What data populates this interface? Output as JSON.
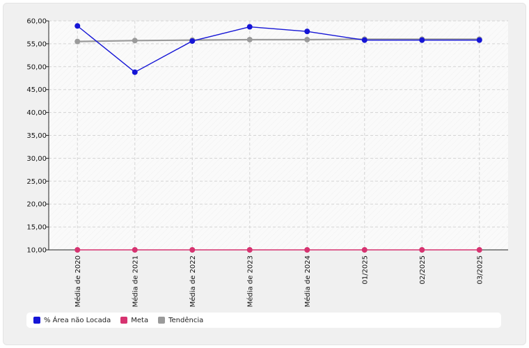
{
  "chart_data": {
    "type": "line",
    "categories": [
      "Média de 2020",
      "Média de 2021",
      "Média de 2022",
      "Média de 2023",
      "Média de 2024",
      "01/2025",
      "02/2025",
      "03/2025"
    ],
    "ylim": [
      10,
      60
    ],
    "yticks": [
      "10,00",
      "15,00",
      "20,00",
      "25,00",
      "30,00",
      "35,00",
      "40,00",
      "45,00",
      "50,00",
      "55,00",
      "60,00"
    ],
    "ytick_values": [
      10,
      15,
      20,
      25,
      30,
      35,
      40,
      45,
      50,
      55,
      60
    ],
    "grid": true,
    "legend_position": "bottom",
    "series": [
      {
        "name": "% Área não Locada",
        "color": "#1515d6",
        "values": [
          58.9,
          48.8,
          55.6,
          58.7,
          57.7,
          55.8,
          55.8,
          55.8
        ]
      },
      {
        "name": "Meta",
        "color": "#d63370",
        "values": [
          10,
          10,
          10,
          10,
          10,
          10,
          10,
          10
        ]
      },
      {
        "name": "Tendência",
        "color": "#9a9a9a",
        "values": [
          55.5,
          55.7,
          55.8,
          55.9,
          55.9,
          56.0,
          56.0,
          56.0
        ]
      }
    ]
  }
}
